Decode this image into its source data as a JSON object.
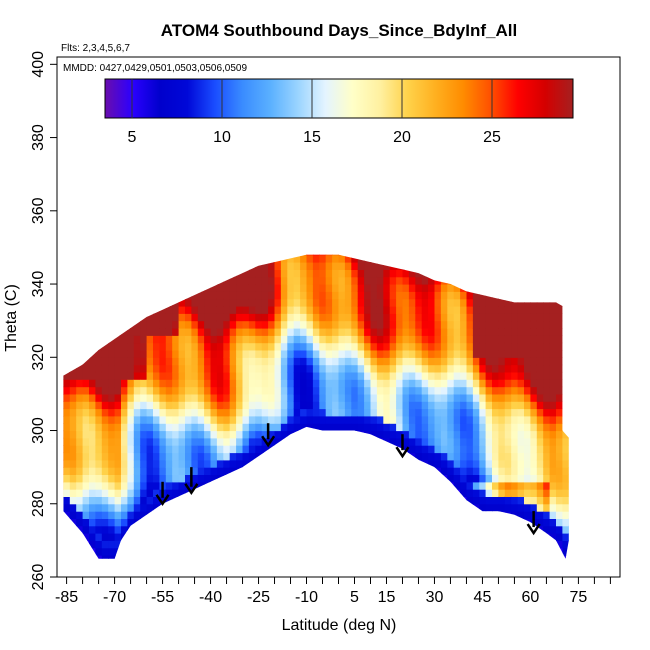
{
  "chart_data": {
    "type": "heatmap",
    "title": "ATOM4 Southbound Days_Since_BdyInf_All",
    "flights_note": "Flts: 2,3,4,5,6,7",
    "dates_note": "MMDD: 0427,0429,0501,0503,0506,0509",
    "xlabel": "Latitude (deg N)",
    "ylabel": "Theta (C)",
    "xlim": [
      -88,
      88
    ],
    "ylim": [
      260,
      402
    ],
    "x_ticks": [
      -85,
      -70,
      -55,
      -40,
      -25,
      -10,
      5,
      15,
      30,
      45,
      60,
      75
    ],
    "x_minor_ticks": [
      -80,
      -75,
      -65,
      -60,
      -50,
      -45,
      -35,
      -30,
      -20,
      -15,
      -5,
      0,
      10,
      20,
      25,
      35,
      40,
      50,
      55,
      65,
      70,
      80,
      85
    ],
    "y_ticks": [
      260,
      280,
      300,
      320,
      340,
      360,
      380,
      400
    ],
    "colorbar": {
      "ticks": [
        5,
        10,
        15,
        20,
        25
      ],
      "range": [
        3.5,
        29.5
      ],
      "colors": [
        "#6a0dad",
        "#2b00ff",
        "#0000cc",
        "#0008d8",
        "#1a4dff",
        "#3a8cff",
        "#5ab0ff",
        "#9ad4ff",
        "#e4f4ff",
        "#ffffc8",
        "#fff0a0",
        "#ffd24a",
        "#ffb020",
        "#ff8c00",
        "#ff5000",
        "#ff0000",
        "#d40000",
        "#a52020"
      ]
    },
    "arrows": [
      {
        "lat": -55,
        "theta_top": 286,
        "theta_tip": 280
      },
      {
        "lat": -46,
        "theta_top": 290,
        "theta_tip": 283
      },
      {
        "lat": -22,
        "theta_top": 302,
        "theta_tip": 296
      },
      {
        "lat": 20,
        "theta_top": 299,
        "theta_tip": 293
      },
      {
        "lat": 61,
        "theta_top": 278,
        "theta_tip": 272
      }
    ],
    "top_boundary": [
      [
        -86,
        315
      ],
      [
        -80,
        318
      ],
      [
        -75,
        322
      ],
      [
        -70,
        325
      ],
      [
        -65,
        328
      ],
      [
        -60,
        331
      ],
      [
        -55,
        333
      ],
      [
        -50,
        335
      ],
      [
        -45,
        337
      ],
      [
        -40,
        339
      ],
      [
        -35,
        341
      ],
      [
        -30,
        343
      ],
      [
        -25,
        345
      ],
      [
        -20,
        346
      ],
      [
        -15,
        347
      ],
      [
        -10,
        348
      ],
      [
        -5,
        348
      ],
      [
        0,
        348
      ],
      [
        5,
        347
      ],
      [
        10,
        346
      ],
      [
        15,
        345
      ],
      [
        20,
        344
      ],
      [
        25,
        343
      ],
      [
        30,
        341
      ],
      [
        35,
        340
      ],
      [
        40,
        338
      ],
      [
        45,
        337
      ],
      [
        50,
        336
      ],
      [
        55,
        335
      ],
      [
        60,
        335
      ],
      [
        65,
        335
      ],
      [
        68,
        335
      ],
      [
        70,
        334
      ]
    ],
    "right_boundary": [
      [
        70,
        334
      ],
      [
        70,
        300
      ],
      [
        72,
        298
      ],
      [
        72,
        270
      ],
      [
        71,
        265
      ]
    ],
    "bottom_boundary": [
      [
        71,
        265
      ],
      [
        68,
        270
      ],
      [
        65,
        272
      ],
      [
        60,
        275
      ],
      [
        55,
        277
      ],
      [
        50,
        278
      ],
      [
        45,
        278
      ],
      [
        40,
        281
      ],
      [
        35,
        286
      ],
      [
        30,
        290
      ],
      [
        25,
        292
      ],
      [
        20,
        295
      ],
      [
        15,
        297
      ],
      [
        10,
        299
      ],
      [
        5,
        300
      ],
      [
        0,
        300
      ],
      [
        -5,
        300
      ],
      [
        -10,
        301
      ],
      [
        -15,
        299
      ],
      [
        -20,
        296
      ],
      [
        -25,
        293
      ],
      [
        -30,
        290
      ],
      [
        -35,
        288
      ],
      [
        -40,
        286
      ],
      [
        -45,
        284
      ],
      [
        -50,
        282
      ],
      [
        -55,
        280
      ],
      [
        -60,
        277
      ],
      [
        -65,
        274
      ],
      [
        -68,
        270
      ],
      [
        -70,
        265
      ],
      [
        -75,
        265
      ],
      [
        -80,
        272
      ],
      [
        -86,
        278
      ]
    ]
  }
}
